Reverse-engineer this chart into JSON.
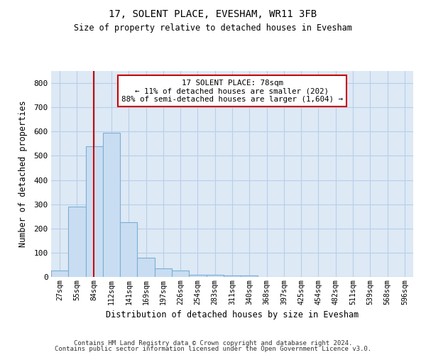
{
  "title": "17, SOLENT PLACE, EVESHAM, WR11 3FB",
  "subtitle": "Size of property relative to detached houses in Evesham",
  "xlabel": "Distribution of detached houses by size in Evesham",
  "ylabel": "Number of detached properties",
  "bin_labels": [
    "27sqm",
    "55sqm",
    "84sqm",
    "112sqm",
    "141sqm",
    "169sqm",
    "197sqm",
    "226sqm",
    "254sqm",
    "283sqm",
    "311sqm",
    "340sqm",
    "368sqm",
    "397sqm",
    "425sqm",
    "454sqm",
    "482sqm",
    "511sqm",
    "539sqm",
    "568sqm",
    "596sqm"
  ],
  "bar_values": [
    25,
    290,
    540,
    595,
    225,
    80,
    35,
    25,
    10,
    8,
    7,
    5,
    0,
    0,
    0,
    0,
    0,
    0,
    0,
    0,
    0
  ],
  "bar_color": "#c9ddf2",
  "bar_edgecolor": "#7bafd4",
  "red_line_x": 1.95,
  "annotation_text": "17 SOLENT PLACE: 78sqm\n← 11% of detached houses are smaller (202)\n88% of semi-detached houses are larger (1,604) →",
  "annotation_box_color": "#ffffff",
  "annotation_box_edgecolor": "#cc0000",
  "red_line_color": "#cc0000",
  "ylim": [
    0,
    850
  ],
  "yticks": [
    0,
    100,
    200,
    300,
    400,
    500,
    600,
    700,
    800
  ],
  "axes_bg_color": "#dde9f5",
  "background_color": "#ffffff",
  "grid_color": "#b8cfe8",
  "footer_line1": "Contains HM Land Registry data © Crown copyright and database right 2024.",
  "footer_line2": "Contains public sector information licensed under the Open Government Licence v3.0."
}
